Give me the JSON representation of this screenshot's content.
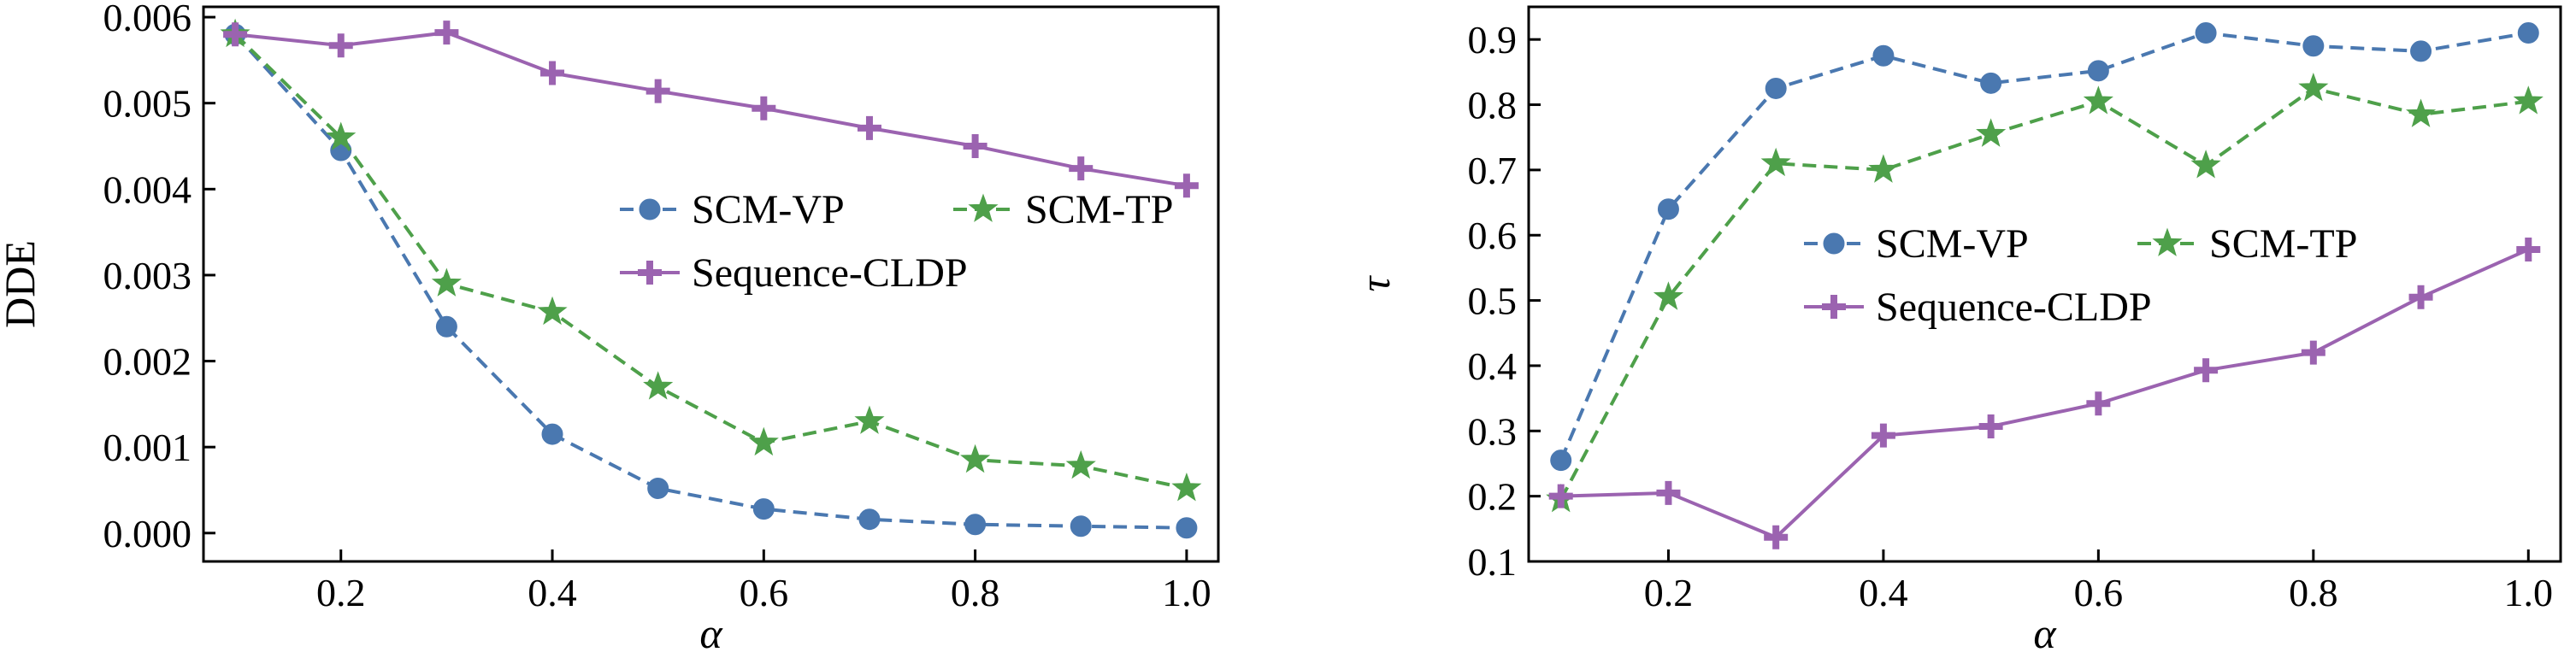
{
  "chart_data": [
    {
      "type": "line",
      "title": "",
      "xlabel": "α",
      "ylabel": "DDE",
      "x": [
        0.1,
        0.2,
        0.3,
        0.4,
        0.5,
        0.6,
        0.7,
        0.8,
        0.9,
        1.0
      ],
      "xlim": [
        0.07,
        1.03
      ],
      "ylim": [
        -0.00033,
        0.00612
      ],
      "xticks": [
        0.2,
        0.4,
        0.6,
        0.8,
        1.0
      ],
      "xtick_labels": [
        "0.2",
        "0.4",
        "0.6",
        "0.8",
        "1.0"
      ],
      "yticks": [
        0.0,
        0.001,
        0.002,
        0.003,
        0.004,
        0.005,
        0.006
      ],
      "ytick_labels": [
        "0.000",
        "0.001",
        "0.002",
        "0.003",
        "0.004",
        "0.005",
        "0.006"
      ],
      "grid": false,
      "legend_position": "center-right",
      "series": [
        {
          "name": "SCM-VP",
          "color": "#4a78b0",
          "linestyle": "dashed",
          "marker": "circle",
          "values": [
            0.0058,
            0.00445,
            0.0024,
            0.00115,
            0.00052,
            0.00028,
            0.00016,
            0.0001,
            8e-05,
            6e-05
          ]
        },
        {
          "name": "SCM-TP",
          "color": "#4ea04a",
          "linestyle": "dashed",
          "marker": "star",
          "values": [
            0.0058,
            0.0046,
            0.0029,
            0.00257,
            0.0017,
            0.00105,
            0.0013,
            0.00085,
            0.00078,
            0.00052
          ]
        },
        {
          "name": "Sequence-CLDP",
          "color": "#9b63b0",
          "linestyle": "solid",
          "marker": "plus",
          "values": [
            0.0058,
            0.00567,
            0.00582,
            0.00535,
            0.00514,
            0.00494,
            0.00471,
            0.0045,
            0.00424,
            0.00404
          ]
        }
      ]
    },
    {
      "type": "line",
      "title": "",
      "xlabel": "α",
      "ylabel": "τ",
      "x": [
        0.1,
        0.2,
        0.3,
        0.4,
        0.5,
        0.6,
        0.7,
        0.8,
        0.9,
        1.0
      ],
      "xlim": [
        0.07,
        1.03
      ],
      "ylim": [
        0.1,
        0.95
      ],
      "xticks": [
        0.2,
        0.4,
        0.6,
        0.8,
        1.0
      ],
      "xtick_labels": [
        "0.2",
        "0.4",
        "0.6",
        "0.8",
        "1.0"
      ],
      "yticks": [
        0.1,
        0.2,
        0.3,
        0.4,
        0.5,
        0.6,
        0.7,
        0.8,
        0.9
      ],
      "ytick_labels": [
        "0.1",
        "0.2",
        "0.3",
        "0.4",
        "0.5",
        "0.6",
        "0.7",
        "0.8",
        "0.9"
      ],
      "grid": false,
      "legend_position": "center",
      "series": [
        {
          "name": "SCM-VP",
          "color": "#4a78b0",
          "linestyle": "dashed",
          "marker": "circle",
          "values": [
            0.255,
            0.64,
            0.825,
            0.875,
            0.833,
            0.852,
            0.91,
            0.89,
            0.882,
            0.91
          ]
        },
        {
          "name": "SCM-TP",
          "color": "#4ea04a",
          "linestyle": "dashed",
          "marker": "star",
          "values": [
            0.195,
            0.505,
            0.71,
            0.7,
            0.755,
            0.805,
            0.707,
            0.825,
            0.785,
            0.805
          ]
        },
        {
          "name": "Sequence-CLDP",
          "color": "#9b63b0",
          "linestyle": "solid",
          "marker": "plus",
          "values": [
            0.2,
            0.205,
            0.137,
            0.293,
            0.307,
            0.342,
            0.393,
            0.42,
            0.505,
            0.578
          ]
        }
      ]
    }
  ]
}
